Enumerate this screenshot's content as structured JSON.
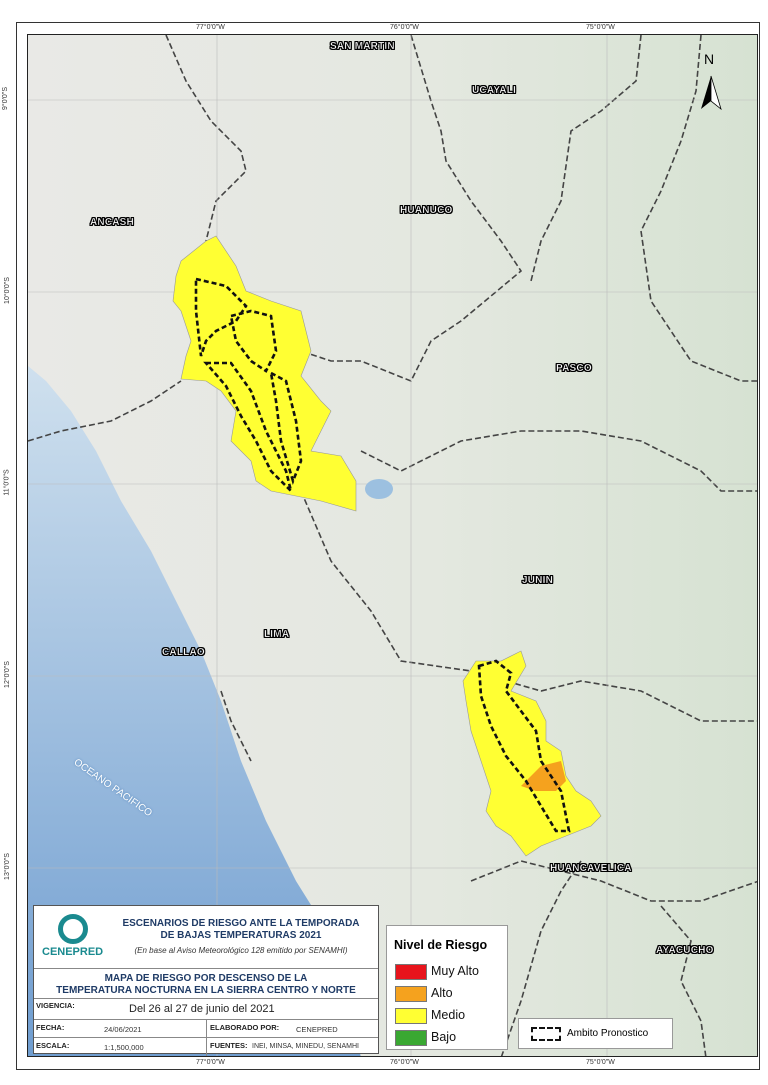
{
  "grid": {
    "lon": [
      "77°0'0\"W",
      "76°0'0\"W",
      "75°0'0\"W"
    ],
    "lat": [
      "9°0'0\"S",
      "10°0'0\"S",
      "11°0'0\"S",
      "12°0'0\"S",
      "13°0'0\"S"
    ]
  },
  "north_arrow": "N",
  "departments": [
    "SAN MARTIN",
    "UCAYALI",
    "ANCASH",
    "HUANUCO",
    "PASCO",
    "JUNIN",
    "LIMA",
    "CALLAO",
    "HUANCAVELICA",
    "AYACUCHO"
  ],
  "ocean": "OCEANO PACIFICO",
  "info": {
    "org_logo": "CENEPRED",
    "title_line1": "ESCENARIOS DE RIESGO ANTE LA TEMPORADA",
    "title_line2": "DE BAJAS TEMPERATURAS 2021",
    "subtitle": "(En base al Aviso Meteorológico 128 emitido por SENAMHI)",
    "map_title_line1": "MAPA DE RIESGO POR DESCENSO DE LA",
    "map_title_line2": "TEMPERATURA NOCTURNA EN LA SIERRA CENTRO Y NORTE",
    "vigencia_label": "VIGENCIA:",
    "vigencia": "Del 26 al 27 de junio del 2021",
    "fecha_label": "FECHA:",
    "fecha": "24/06/2021",
    "elaborado_label": "ELABORADO POR:",
    "elaborado": "CENEPRED",
    "escala_label": "ESCALA:",
    "escala": "1:1,500,000",
    "fuentes_label": "FUENTES:",
    "fuentes": "INEI, MINSA, MINEDU, SENAMHI"
  },
  "legend": {
    "title": "Nivel de Riesgo",
    "items": [
      {
        "label": "Muy Alto",
        "color": "#e8141c"
      },
      {
        "label": "Alto",
        "color": "#f5a21e"
      },
      {
        "label": "Medio",
        "color": "#ffff33"
      },
      {
        "label": "Bajo",
        "color": "#3aa832"
      }
    ],
    "ambito": "Ambito Pronostico"
  }
}
